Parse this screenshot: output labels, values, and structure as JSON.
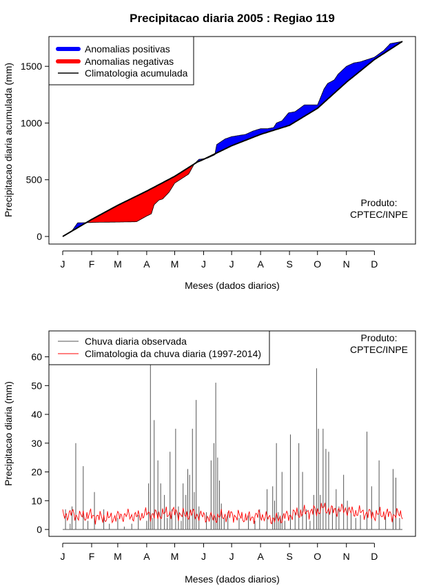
{
  "chart_data": [
    {
      "type": "area",
      "title": "Precipitacao diaria 2005 : Regiao 119",
      "xlabel": "Meses (dados diarios)",
      "ylabel": "Precipitacao diaria acumulada (mm)",
      "x_tick_labels": [
        "J",
        "F",
        "M",
        "A",
        "M",
        "J",
        "J",
        "A",
        "S",
        "O",
        "N",
        "D"
      ],
      "x_tick_days": [
        1,
        32,
        60,
        91,
        121,
        152,
        182,
        213,
        244,
        274,
        305,
        335
      ],
      "xlim": [
        1,
        365
      ],
      "ylim": [
        0,
        1720
      ],
      "y_ticks": [
        0,
        500,
        1000,
        1500
      ],
      "legend": [
        {
          "label": "Anomalias positivas",
          "color": "#0000ff"
        },
        {
          "label": "Anomalias negativas",
          "color": "#ff0000"
        },
        {
          "label": "Climatologia acumulada",
          "color": "#000000"
        }
      ],
      "annotation": [
        "Produto:",
        "CPTEC/INPE"
      ],
      "climatology_cumulative": {
        "day": [
          1,
          32,
          60,
          91,
          121,
          145,
          152,
          182,
          213,
          244,
          274,
          305,
          335,
          365
        ],
        "value": [
          0,
          150,
          275,
          400,
          530,
          655,
          680,
          800,
          900,
          980,
          1130,
          1360,
          1560,
          1720
        ]
      },
      "observed_cumulative": {
        "day": [
          1,
          10,
          17,
          40,
          60,
          80,
          91,
          96,
          99,
          104,
          108,
          115,
          121,
          136,
          142,
          147,
          156,
          164,
          166,
          175,
          182,
          197,
          205,
          213,
          220,
          227,
          230,
          236,
          243,
          250,
          260,
          274,
          281,
          285,
          292,
          296,
          305,
          313,
          320,
          335,
          345,
          352,
          365
        ],
        "value": [
          0,
          40,
          120,
          125,
          127,
          130,
          180,
          200,
          280,
          320,
          330,
          390,
          470,
          550,
          640,
          680,
          690,
          720,
          810,
          860,
          880,
          900,
          930,
          950,
          950,
          960,
          1000,
          1020,
          1090,
          1100,
          1160,
          1160,
          1300,
          1350,
          1380,
          1430,
          1500,
          1530,
          1540,
          1580,
          1640,
          1700,
          1720
        ]
      }
    },
    {
      "type": "line",
      "xlabel": "Meses (dados diarios)",
      "ylabel": "Precipitacao diaria (mm)",
      "x_tick_labels": [
        "J",
        "F",
        "M",
        "A",
        "M",
        "J",
        "J",
        "A",
        "S",
        "O",
        "N",
        "D"
      ],
      "x_tick_days": [
        1,
        32,
        60,
        91,
        121,
        152,
        182,
        213,
        244,
        274,
        305,
        335
      ],
      "xlim": [
        1,
        365
      ],
      "ylim": [
        0,
        69
      ],
      "y_ticks": [
        0,
        10,
        20,
        30,
        40,
        50,
        60
      ],
      "legend": [
        {
          "label": "Chuva diaria observada",
          "color": "#555555"
        },
        {
          "label": "Climatologia da chuva diaria (1997-2014)",
          "color": "#ff0000"
        }
      ],
      "annotation": [
        "Produto:",
        "CPTEC/INPE"
      ],
      "observed_peaks": {
        "day": [
          4,
          9,
          11,
          15,
          23,
          28,
          35,
          45,
          51,
          60,
          67,
          75,
          82,
          91,
          93,
          95,
          97,
          99,
          103,
          106,
          110,
          113,
          116,
          118,
          122,
          125,
          128,
          130,
          133,
          135,
          137,
          140,
          142,
          144,
          147,
          155,
          160,
          163,
          165,
          167,
          169,
          171,
          174,
          178,
          190,
          200,
          207,
          212,
          220,
          226,
          228,
          230,
          232,
          234,
          236,
          239,
          245,
          250,
          254,
          258,
          262,
          266,
          270,
          273,
          275,
          277,
          280,
          283,
          286,
          290,
          294,
          297,
          302,
          306,
          310,
          315,
          320,
          327,
          332,
          340,
          347,
          355,
          358,
          362
        ],
        "value": [
          7,
          2,
          8,
          30,
          22,
          3,
          13,
          7,
          2,
          4,
          1,
          2,
          5,
          3,
          16,
          58,
          4,
          38,
          24,
          16,
          12,
          4,
          27,
          7,
          35,
          8,
          3,
          16,
          12,
          21,
          19,
          35,
          13,
          45,
          8,
          6,
          24,
          30,
          51,
          25,
          17,
          9,
          4,
          6,
          4,
          5,
          3,
          7,
          14,
          15,
          10,
          30,
          6,
          4,
          20,
          3,
          33,
          6,
          30,
          20,
          7,
          3,
          12,
          56,
          35,
          12,
          35,
          28,
          27,
          8,
          14,
          8,
          19,
          10,
          6,
          4,
          5,
          34,
          15,
          24,
          5,
          21,
          18,
          4
        ]
      },
      "climatology_daily": {
        "day": [
          1,
          10,
          20,
          30,
          40,
          50,
          60,
          70,
          80,
          91,
          100,
          110,
          121,
          130,
          140,
          152,
          160,
          170,
          182,
          190,
          200,
          213,
          220,
          230,
          244,
          250,
          260,
          274,
          280,
          290,
          305,
          310,
          320,
          335,
          345,
          355,
          365
        ],
        "value": [
          4.8,
          5.5,
          4.5,
          5.0,
          4.2,
          4.0,
          4.5,
          5.0,
          4.5,
          5.5,
          5.0,
          5.5,
          6.0,
          5.0,
          5.5,
          4.5,
          4.0,
          4.5,
          5.0,
          4.5,
          4.0,
          5.0,
          4.0,
          3.5,
          5.0,
          5.5,
          6.0,
          6.5,
          7.5,
          6.5,
          7.0,
          6.0,
          6.0,
          5.0,
          5.5,
          5.0,
          5.5
        ]
      }
    }
  ]
}
